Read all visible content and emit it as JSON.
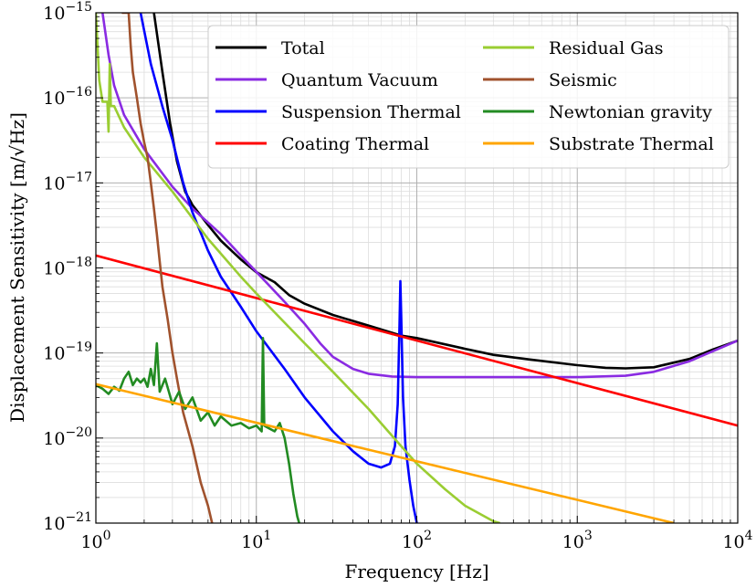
{
  "chart_data": {
    "type": "line",
    "xscale": "log",
    "yscale": "log",
    "xlim": [
      1,
      10000
    ],
    "ylim": [
      1e-21,
      1e-15
    ],
    "xlabel": "Frequency [Hz]",
    "ylabel": "Displacement Sensitivity [m/√Hz]",
    "grid": true,
    "legend": "top-right",
    "x_ticks": [
      {
        "value": 1,
        "base": "10",
        "exp": "0"
      },
      {
        "value": 10,
        "base": "10",
        "exp": "1"
      },
      {
        "value": 100,
        "base": "10",
        "exp": "2"
      },
      {
        "value": 1000,
        "base": "10",
        "exp": "3"
      },
      {
        "value": 10000,
        "base": "10",
        "exp": "4"
      }
    ],
    "y_ticks": [
      {
        "value": 1e-21,
        "base": "10",
        "exp": "−21"
      },
      {
        "value": 1e-20,
        "base": "10",
        "exp": "−20"
      },
      {
        "value": 1e-19,
        "base": "10",
        "exp": "−19"
      },
      {
        "value": 1e-18,
        "base": "10",
        "exp": "−18"
      },
      {
        "value": 1e-17,
        "base": "10",
        "exp": "−17"
      },
      {
        "value": 1e-16,
        "base": "10",
        "exp": "−16"
      },
      {
        "value": 1e-15,
        "base": "10",
        "exp": "−15"
      }
    ],
    "series": [
      {
        "name": "Total",
        "color": "#000000",
        "points": [
          [
            2.3,
            1e-15
          ],
          [
            2.6,
            2e-16
          ],
          [
            2.9,
            5e-17
          ],
          [
            3.2,
            1.8e-17
          ],
          [
            3.6,
            7.9e-18
          ],
          [
            4.0,
            5.5e-18
          ],
          [
            5.0,
            3.2e-18
          ],
          [
            6.0,
            2.1e-18
          ],
          [
            8.0,
            1.26e-18
          ],
          [
            10,
            8.9e-19
          ],
          [
            13,
            6.8e-19
          ],
          [
            16,
            4.8e-19
          ],
          [
            20,
            3.8e-19
          ],
          [
            30,
            2.8e-19
          ],
          [
            50,
            2.1e-19
          ],
          [
            80,
            1.6e-19
          ],
          [
            100,
            1.5e-19
          ],
          [
            200,
            1.12e-19
          ],
          [
            300,
            9.5e-20
          ],
          [
            500,
            8.4e-20
          ],
          [
            1000,
            7.2e-20
          ],
          [
            1500,
            6.7e-20
          ],
          [
            2000,
            6.6e-20
          ],
          [
            3000,
            6.8e-20
          ],
          [
            5000,
            8.5e-20
          ],
          [
            7000,
            1.1e-19
          ],
          [
            10000,
            1.4e-19
          ]
        ]
      },
      {
        "name": "Quantum Vacuum",
        "color": "#8a2be2",
        "points": [
          [
            1.1,
            1e-15
          ],
          [
            1.2,
            3.2e-16
          ],
          [
            1.3,
            1.4e-16
          ],
          [
            1.5,
            6.3e-17
          ],
          [
            2.0,
            2.5e-17
          ],
          [
            3.0,
            9e-18
          ],
          [
            4.0,
            5e-18
          ],
          [
            6.0,
            2.5e-18
          ],
          [
            8.0,
            1.4e-18
          ],
          [
            10,
            9e-19
          ],
          [
            15,
            4e-19
          ],
          [
            20,
            2.2e-19
          ],
          [
            25,
            1.3e-19
          ],
          [
            30,
            9e-20
          ],
          [
            40,
            6.5e-20
          ],
          [
            50,
            5.7e-20
          ],
          [
            70,
            5.3e-20
          ],
          [
            100,
            5.2e-20
          ],
          [
            300,
            5.2e-20
          ],
          [
            1000,
            5.2e-20
          ],
          [
            2000,
            5.4e-20
          ],
          [
            3000,
            6e-20
          ],
          [
            5000,
            8e-20
          ],
          [
            7000,
            1.05e-19
          ],
          [
            10000,
            1.4e-19
          ]
        ]
      },
      {
        "name": "Suspension Thermal",
        "color": "#0000ff",
        "points": [
          [
            1.9,
            1e-15
          ],
          [
            2.2,
            2.5e-16
          ],
          [
            2.6,
            7.9e-17
          ],
          [
            3.0,
            3.2e-17
          ],
          [
            3.5,
            1e-17
          ],
          [
            4.0,
            4.5e-18
          ],
          [
            5.0,
            1.6e-18
          ],
          [
            6.0,
            7.9e-19
          ],
          [
            8.0,
            3.5e-19
          ],
          [
            10,
            1.8e-19
          ],
          [
            15,
            6.5e-20
          ],
          [
            20,
            3e-20
          ],
          [
            30,
            1.2e-20
          ],
          [
            40,
            7e-21
          ],
          [
            50,
            5e-21
          ],
          [
            60,
            4.5e-21
          ],
          [
            68,
            5e-21
          ],
          [
            73,
            8e-21
          ],
          [
            76,
            2.5e-20
          ],
          [
            78,
            2e-19
          ],
          [
            79,
            7e-19
          ],
          [
            80,
            2.5e-19
          ],
          [
            82,
            3e-20
          ],
          [
            85,
            8e-21
          ],
          [
            90,
            3.2e-21
          ],
          [
            95,
            1.6e-21
          ],
          [
            100,
            1e-21
          ]
        ]
      },
      {
        "name": "Coating Thermal",
        "color": "#ff0000",
        "points": [
          [
            1,
            1.4e-18
          ],
          [
            10000,
            1.4e-20
          ]
        ]
      },
      {
        "name": "Residual Gas",
        "color": "#9acd32",
        "points": [
          [
            1.0,
            1e-15
          ],
          [
            1.05,
            1.6e-16
          ],
          [
            1.1,
            9e-17
          ],
          [
            1.18,
            9e-17
          ],
          [
            1.2,
            4e-17
          ],
          [
            1.22,
            2.5e-16
          ],
          [
            1.24,
            8e-17
          ],
          [
            1.3,
            8e-17
          ],
          [
            1.5,
            4.5e-17
          ],
          [
            2.0,
            2e-17
          ],
          [
            3.0,
            7.9e-18
          ],
          [
            5.0,
            2.2e-18
          ],
          [
            8.0,
            7.9e-19
          ],
          [
            10,
            5e-19
          ],
          [
            20,
            1.3e-19
          ],
          [
            30,
            6e-20
          ],
          [
            50,
            2.2e-20
          ],
          [
            80,
            8e-21
          ],
          [
            100,
            5e-21
          ],
          [
            150,
            2.5e-21
          ],
          [
            200,
            1.6e-21
          ],
          [
            300,
            1.05e-21
          ],
          [
            330,
            1e-21
          ]
        ]
      },
      {
        "name": "Seismic",
        "color": "#a0522d",
        "points": [
          [
            1.45,
            1e-15
          ],
          [
            1.6,
            1e-15
          ],
          [
            1.65,
            4e-16
          ],
          [
            1.7,
            2e-16
          ],
          [
            1.8,
            1e-16
          ],
          [
            1.9,
            5e-17
          ],
          [
            2.0,
            3e-17
          ],
          [
            2.1,
            2e-17
          ],
          [
            2.2,
            1e-17
          ],
          [
            2.3,
            5e-18
          ],
          [
            2.4,
            2.5e-18
          ],
          [
            2.5,
            1.2e-18
          ],
          [
            2.6,
            6e-19
          ],
          [
            2.8,
            2.5e-19
          ],
          [
            3.0,
            1e-19
          ],
          [
            3.2,
            5e-20
          ],
          [
            3.5,
            2e-20
          ],
          [
            4.0,
            8e-21
          ],
          [
            4.5,
            3e-21
          ],
          [
            5.0,
            1.6e-21
          ],
          [
            5.3,
            1e-21
          ]
        ]
      },
      {
        "name": "Newtonian gravity",
        "color": "#228b22",
        "points": [
          [
            1.0,
            4.2e-20
          ],
          [
            1.1,
            3.8e-20
          ],
          [
            1.2,
            3.3e-20
          ],
          [
            1.3,
            4e-20
          ],
          [
            1.4,
            3.6e-20
          ],
          [
            1.5,
            5e-20
          ],
          [
            1.6,
            6e-20
          ],
          [
            1.7,
            4.2e-20
          ],
          [
            1.8,
            5e-20
          ],
          [
            1.9,
            4.5e-20
          ],
          [
            2.0,
            5e-20
          ],
          [
            2.1,
            4e-20
          ],
          [
            2.2,
            6.5e-20
          ],
          [
            2.3,
            4.2e-20
          ],
          [
            2.4,
            1.3e-19
          ],
          [
            2.5,
            3.5e-20
          ],
          [
            2.7,
            5e-20
          ],
          [
            3.0,
            2.5e-20
          ],
          [
            3.3,
            3.5e-20
          ],
          [
            3.6,
            2.2e-20
          ],
          [
            4.0,
            3e-20
          ],
          [
            4.5,
            1.6e-20
          ],
          [
            5.0,
            2e-20
          ],
          [
            5.5,
            1.4e-20
          ],
          [
            6.0,
            1.8e-20
          ],
          [
            7.0,
            1.4e-20
          ],
          [
            8.0,
            1.5e-20
          ],
          [
            9.0,
            1.3e-20
          ],
          [
            10,
            1.4e-20
          ],
          [
            10.8,
            1.2e-20
          ],
          [
            11,
            1.5e-19
          ],
          [
            11.2,
            1.4e-20
          ],
          [
            12,
            1.3e-20
          ],
          [
            13,
            1.2e-20
          ],
          [
            14,
            1.5e-20
          ],
          [
            15,
            1e-20
          ],
          [
            16,
            5e-21
          ],
          [
            17,
            2.2e-21
          ],
          [
            18,
            1.2e-21
          ],
          [
            18.5,
            1e-21
          ]
        ]
      },
      {
        "name": "Substrate Thermal",
        "color": "#ffa500",
        "points": [
          [
            1,
            4.3e-20
          ],
          [
            4000,
            1e-21
          ]
        ]
      }
    ]
  }
}
